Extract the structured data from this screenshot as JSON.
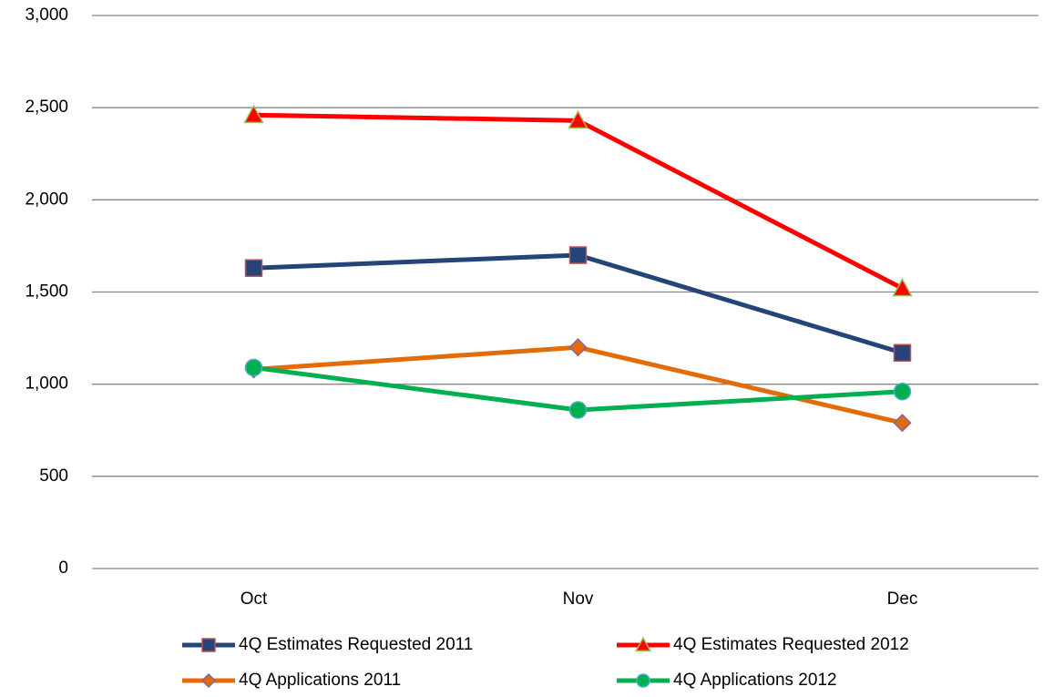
{
  "chart_data": {
    "type": "line",
    "categories": [
      "Oct",
      "Nov",
      "Dec"
    ],
    "series": [
      {
        "name": "4Q Estimates Requested 2011",
        "color": "#254478",
        "marker": "square",
        "marker_edge": "#c0504d",
        "values": [
          1630,
          1700,
          1170
        ]
      },
      {
        "name": "4Q Estimates Requested 2012",
        "color": "#ff0000",
        "marker": "triangle",
        "marker_edge": "#9bbb59",
        "values": [
          2460,
          2430,
          1520
        ]
      },
      {
        "name": "4Q Applications 2011",
        "color": "#e36c09",
        "marker": "diamond",
        "marker_edge": "#8064a2",
        "values": [
          1080,
          1200,
          790
        ]
      },
      {
        "name": "4Q Applications 2012",
        "color": "#00b050",
        "marker": "circle",
        "marker_edge": "#4bacc6",
        "values": [
          1090,
          860,
          960
        ]
      }
    ],
    "ylim": [
      0,
      3000
    ],
    "yticks": [
      0,
      500,
      {
        "value": 1000,
        "label": "1,000"
      },
      {
        "value": 1500,
        "label": "1,500"
      },
      {
        "value": 2000,
        "label": "2,000"
      },
      {
        "value": 2500,
        "label": "2,500"
      },
      {
        "value": 3000,
        "label": "3,000"
      }
    ],
    "grid": true,
    "legend": "bottom"
  }
}
